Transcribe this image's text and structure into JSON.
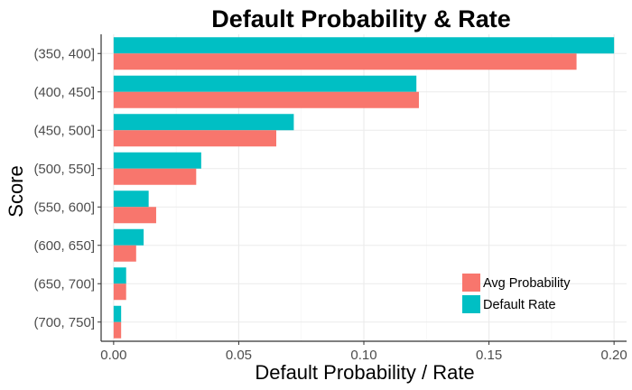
{
  "chart_data": {
    "type": "bar",
    "orientation": "horizontal",
    "title": "Default Probability & Rate",
    "xlabel": "Default Probability / Rate",
    "ylabel": "Score",
    "categories": [
      "(350, 400]",
      "(400, 450]",
      "(450, 500]",
      "(500, 550]",
      "(550, 600]",
      "(600, 650]",
      "(650, 700]",
      "(700, 750]"
    ],
    "series": [
      {
        "name": "Default Rate",
        "color": "#00bfc4",
        "values": [
          0.2,
          0.121,
          0.072,
          0.035,
          0.014,
          0.012,
          0.005,
          0.003
        ]
      },
      {
        "name": "Avg Probability",
        "color": "#f8766d",
        "values": [
          0.185,
          0.122,
          0.065,
          0.033,
          0.017,
          0.009,
          0.005,
          0.003
        ]
      }
    ],
    "xlim": [
      -0.005,
      0.205
    ],
    "xticks": [
      0.0,
      0.05,
      0.1,
      0.15,
      0.2
    ],
    "xtick_labels": [
      "0.00",
      "0.05",
      "0.10",
      "0.15",
      "0.20"
    ],
    "grid": true,
    "legend": {
      "position": "bottom-right",
      "entries": [
        {
          "label": "Avg Probability",
          "color": "#f8766d"
        },
        {
          "label": "Default Rate",
          "color": "#00bfc4"
        }
      ]
    }
  }
}
